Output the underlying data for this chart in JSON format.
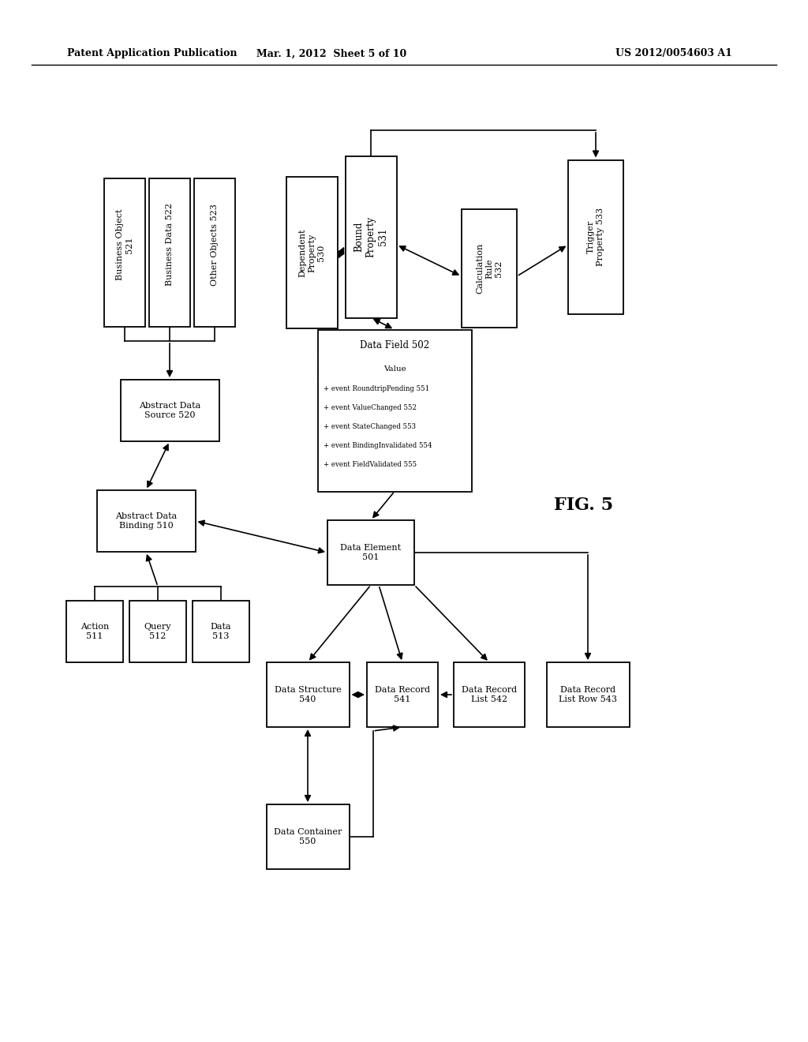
{
  "title_left": "Patent Application Publication",
  "title_mid": "Mar. 1, 2012  Sheet 5 of 10",
  "title_right": "US 2012/0054603 A1",
  "fig_label": "FIG. 5",
  "bg": "#ffffff"
}
